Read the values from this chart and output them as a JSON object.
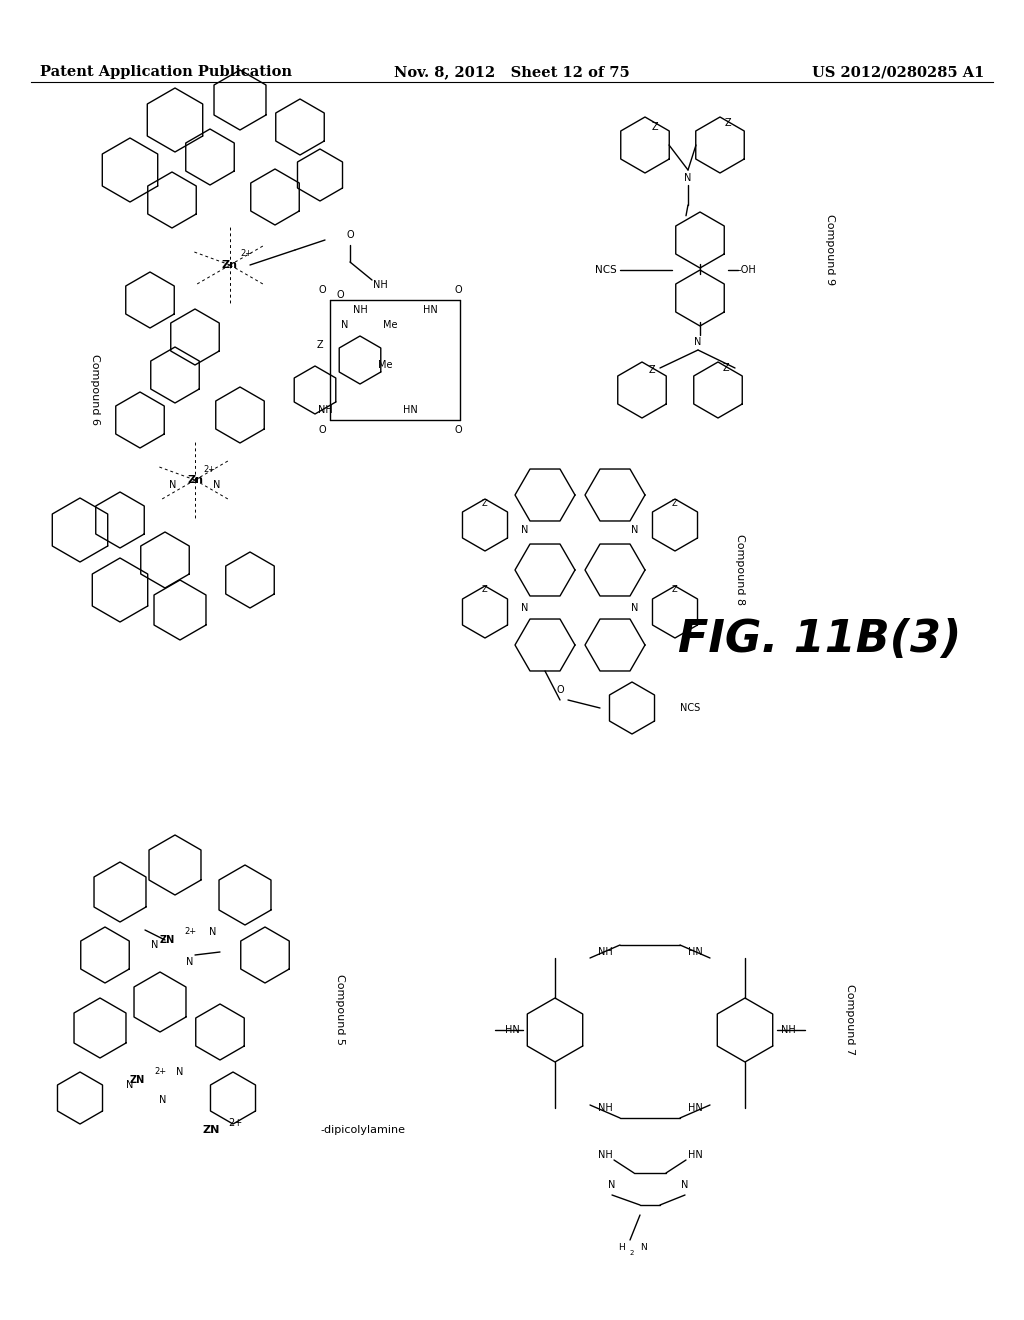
{
  "header_left": "Patent Application Publication",
  "header_center": "Nov. 8, 2012   Sheet 12 of 75",
  "header_right": "US 2012/0280285 A1",
  "figure_label": "FIG. 11B(3)",
  "background_color": "#ffffff",
  "header_font_size": 10.5,
  "fig_label_fontsize": 32,
  "compound5_label": "Compound 5",
  "compound5_sublabel": "ZN2+  -dipicolylamine",
  "compound6_label": "Compound 6",
  "compound7_label": "Compound 7",
  "compound8_label": "Compound 8",
  "compound9_label": "Compound 9"
}
